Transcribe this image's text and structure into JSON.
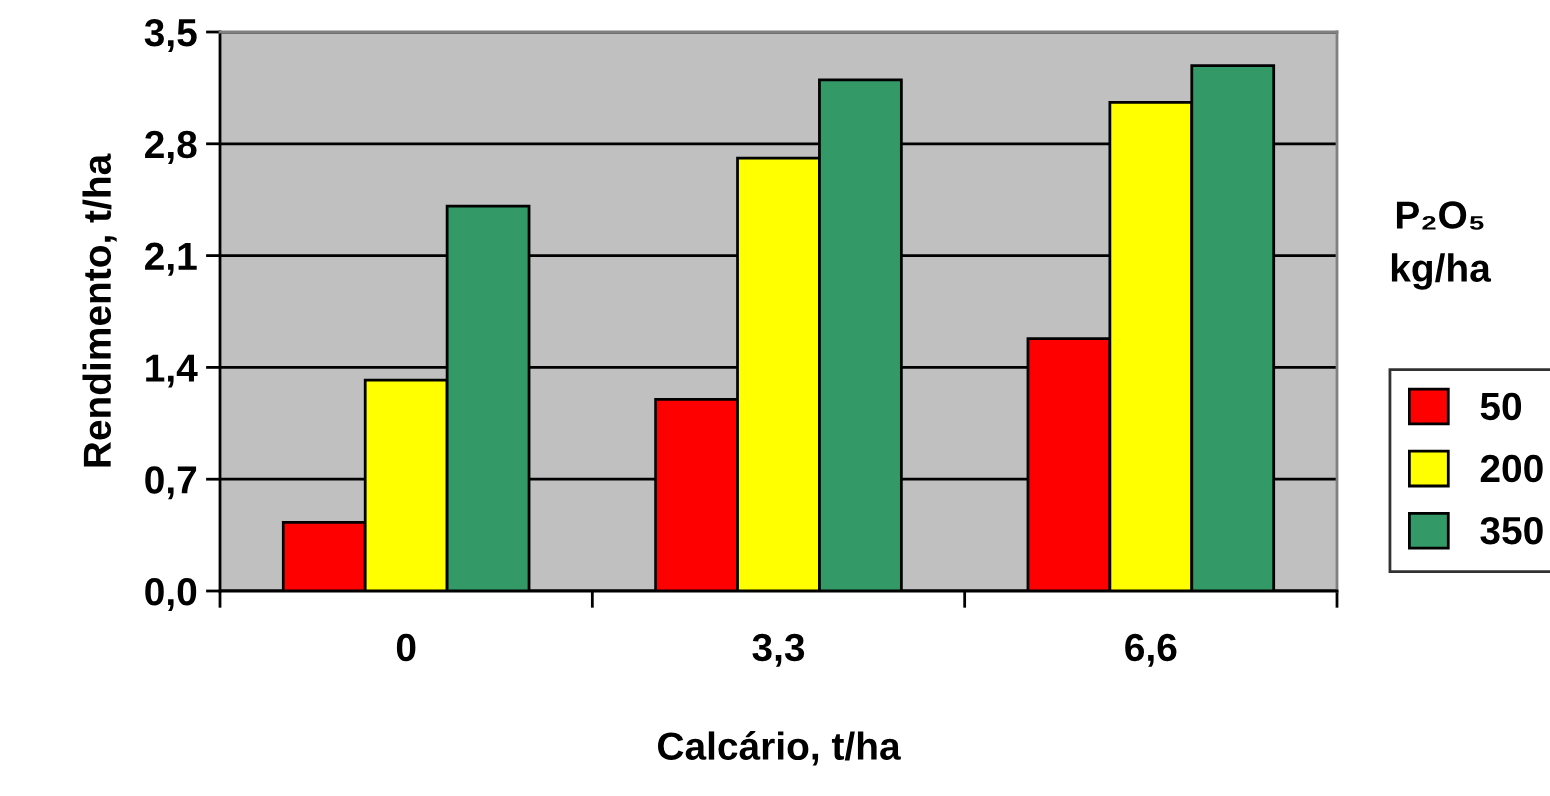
{
  "chart_data": {
    "type": "bar",
    "xlabel": "Calcário, t/ha",
    "ylabel": "Rendimento, t/ha",
    "legend_title": "P₂O₅\nkg/ha",
    "categories": [
      "0",
      "3,3",
      "6,6"
    ],
    "series": [
      {
        "name": "50",
        "color": "#ff0000",
        "values": [
          0.43,
          1.2,
          1.58
        ]
      },
      {
        "name": "200",
        "color": "#ffff00",
        "values": [
          1.32,
          2.71,
          3.06
        ]
      },
      {
        "name": "350",
        "color": "#339966",
        "values": [
          2.41,
          3.2,
          3.29
        ]
      }
    ],
    "ylim": [
      0,
      3.5
    ],
    "yticks": [
      {
        "value": 0,
        "label": "0,0"
      },
      {
        "value": 0.7,
        "label": "0,7"
      },
      {
        "value": 1.4,
        "label": "1,4"
      },
      {
        "value": 2.1,
        "label": "2,1"
      },
      {
        "value": 2.8,
        "label": "2,8"
      },
      {
        "value": 3.5,
        "label": "3,5"
      }
    ],
    "grid": "y",
    "legend": "right"
  }
}
